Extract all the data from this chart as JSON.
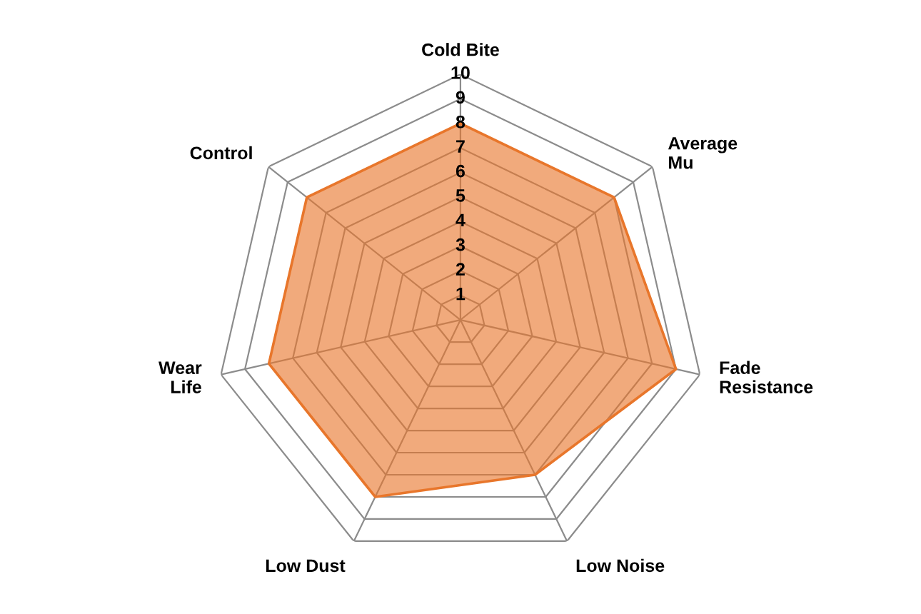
{
  "chart_data": {
    "type": "radar",
    "categories": [
      "Cold Bite",
      "Average\nMu",
      "Fade\nResistance",
      "Low Noise",
      "Low Dust",
      "Wear\nLife",
      "Control"
    ],
    "series": [
      {
        "color": "#e8762b",
        "values": [
          8,
          8,
          9,
          7,
          8,
          8,
          8
        ]
      }
    ],
    "ylim": [
      0,
      10
    ],
    "yticks": [
      1,
      2,
      3,
      4,
      5,
      6,
      7,
      8,
      9,
      10
    ],
    "grid": true
  }
}
